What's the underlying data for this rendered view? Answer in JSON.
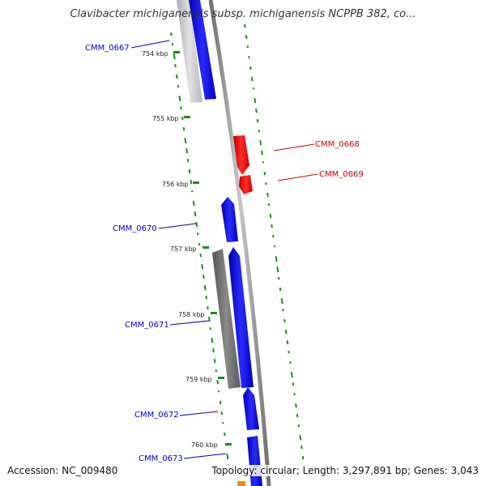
{
  "title": "Clavibacter michiganensis subsp. michiganensis NCPPB 382, co...",
  "footer": {
    "accession": "Accession: NC_009480",
    "stats": "Topology: circular; Length: 3,297,891 bp; Genes: 3,043"
  },
  "colors": {
    "forward_gene": "#0000ff",
    "reverse_gene": "#ff0000",
    "other_gene": "#808080",
    "backbone": "#8c8c8c",
    "gc_skew": "#1e8c1e",
    "label_blue": "#0000cc",
    "label_red": "#cc0000"
  },
  "ticks": [
    "754 kbp",
    "755 kbp",
    "756 kbp",
    "757 kbp",
    "758 kbp",
    "759 kbp",
    "760 kbp"
  ],
  "gene_labels": [
    {
      "text": "CMM_0667",
      "side": "left"
    },
    {
      "text": "CMM_0668",
      "side": "right"
    },
    {
      "text": "CMM_0669",
      "side": "right"
    },
    {
      "text": "CMM_0670",
      "side": "left"
    },
    {
      "text": "CMM_0671",
      "side": "left"
    },
    {
      "text": "CMM_0672",
      "side": "left"
    },
    {
      "text": "CMM_0673",
      "side": "left"
    }
  ]
}
